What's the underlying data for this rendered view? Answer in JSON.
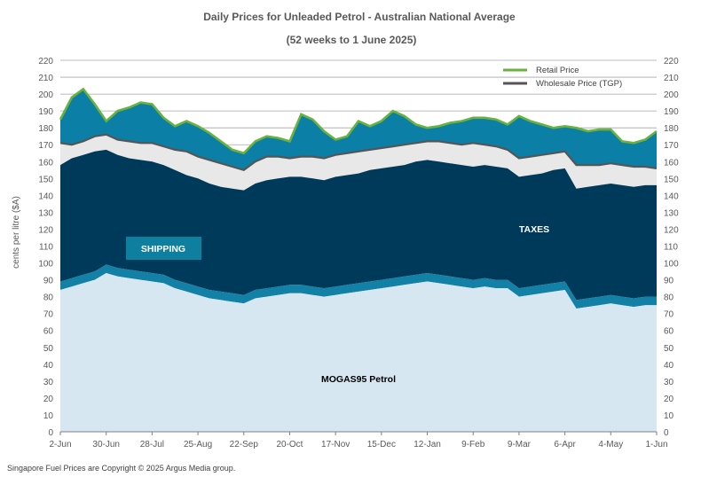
{
  "chart_data": {
    "type": "area",
    "title": "Daily  Prices for Unleaded  Petrol  - Australian  National  Average",
    "subtitle": "(52 weeks to 1 June 2025)",
    "ylabel": "cents per litre ($A)",
    "xlabel": "",
    "ylim": [
      0,
      220
    ],
    "yticks": [
      0,
      10,
      20,
      30,
      40,
      50,
      60,
      70,
      80,
      90,
      100,
      110,
      120,
      130,
      140,
      150,
      160,
      170,
      180,
      190,
      200,
      210,
      220
    ],
    "x_ticks": [
      "2-Jun",
      "30-Jun",
      "28-Jul",
      "25-Aug",
      "22-Sep",
      "20-Oct",
      "17-Nov",
      "15-Dec",
      "12-Jan",
      "9-Feb",
      "9-Mar",
      "6-Apr",
      "4-May",
      "1-Jun"
    ],
    "x_tick_days": [
      0,
      28,
      56,
      84,
      112,
      140,
      168,
      196,
      224,
      252,
      280,
      308,
      336,
      364
    ],
    "x": [
      0,
      7,
      14,
      21,
      28,
      35,
      42,
      49,
      56,
      63,
      70,
      77,
      84,
      91,
      98,
      105,
      112,
      119,
      126,
      133,
      140,
      147,
      154,
      161,
      168,
      175,
      182,
      189,
      196,
      203,
      210,
      217,
      224,
      231,
      238,
      245,
      252,
      259,
      266,
      273,
      280,
      287,
      294,
      301,
      308,
      315,
      322,
      329,
      336,
      343,
      350,
      357,
      364
    ],
    "series": [
      {
        "name": "MOGAS95 Petrol",
        "values": [
          84,
          86,
          88,
          90,
          94,
          92,
          91,
          90,
          89,
          88,
          85,
          83,
          81,
          79,
          78,
          77,
          76,
          79,
          80,
          81,
          82,
          82,
          81,
          80,
          81,
          82,
          83,
          84,
          85,
          86,
          87,
          88,
          89,
          88,
          87,
          86,
          85,
          86,
          85,
          85,
          80,
          81,
          82,
          83,
          84,
          73,
          74,
          75,
          76,
          75,
          74,
          75,
          75
        ]
      },
      {
        "name": "SHIPPING",
        "values": [
          5,
          5,
          5,
          5,
          5,
          5,
          5,
          5,
          5,
          5,
          5,
          5,
          5,
          5,
          5,
          5,
          5,
          5,
          5,
          5,
          5,
          5,
          5,
          5,
          5,
          5,
          5,
          5,
          5,
          5,
          5,
          5,
          5,
          5,
          5,
          5,
          5,
          5,
          5,
          5,
          5,
          5,
          5,
          5,
          5,
          5,
          5,
          5,
          5,
          5,
          5,
          5,
          5
        ]
      },
      {
        "name": "TAXES",
        "values": [
          69,
          71,
          71,
          71,
          68,
          67,
          66,
          66,
          66,
          65,
          65,
          64,
          64,
          63,
          62,
          62,
          62,
          63,
          64,
          64,
          64,
          64,
          64,
          64,
          65,
          65,
          65,
          66,
          66,
          66,
          66,
          67,
          67,
          67,
          67,
          67,
          67,
          67,
          67,
          66,
          66,
          66,
          66,
          67,
          67,
          66,
          66,
          66,
          66,
          66,
          66,
          66,
          66
        ]
      },
      {
        "name": "Wholesale Price (TGP)",
        "values": [
          171,
          170,
          172,
          175,
          176,
          173,
          172,
          171,
          171,
          169,
          167,
          166,
          163,
          161,
          159,
          157,
          155,
          160,
          163,
          163,
          162,
          163,
          163,
          162,
          164,
          165,
          166,
          167,
          168,
          169,
          170,
          171,
          172,
          172,
          171,
          170,
          171,
          170,
          169,
          167,
          162,
          163,
          164,
          165,
          166,
          158,
          158,
          158,
          159,
          158,
          157,
          157,
          156
        ]
      },
      {
        "name": "Retail Price",
        "values": [
          185,
          198,
          203,
          194,
          184,
          190,
          192,
          195,
          194,
          186,
          181,
          184,
          181,
          177,
          172,
          167,
          165,
          172,
          175,
          174,
          172,
          188,
          185,
          178,
          173,
          175,
          184,
          181,
          184,
          190,
          187,
          182,
          180,
          181,
          183,
          184,
          186,
          186,
          185,
          182,
          187,
          184,
          182,
          180,
          181,
          180,
          178,
          179,
          179,
          172,
          171,
          173,
          178
        ]
      }
    ],
    "colors": {
      "mogas": "#d6e7f2",
      "shipping": "#1281a5",
      "taxes": "#003a5a",
      "tgp_band": "#e8e8e8",
      "retail_band": "#0b7fa6",
      "retail_line": "#6ab23e",
      "tgp_line": "#555555",
      "grid": "#a6a6a6",
      "shipping_box": "#0e7f9f"
    },
    "legend": [
      {
        "label": "Retail Price",
        "color": "#6ab23e"
      },
      {
        "label": "Wholesale Price (TGP)",
        "color": "#555555"
      }
    ],
    "legend_position": "top-right",
    "annotations": {
      "shipping": "SHIPPING",
      "taxes": "TAXES",
      "mogas": "MOGAS95 Petrol"
    },
    "grid": true
  },
  "footer": "Singapore  Fuel Prices are  Copyright © 2025 Argus Media  group."
}
